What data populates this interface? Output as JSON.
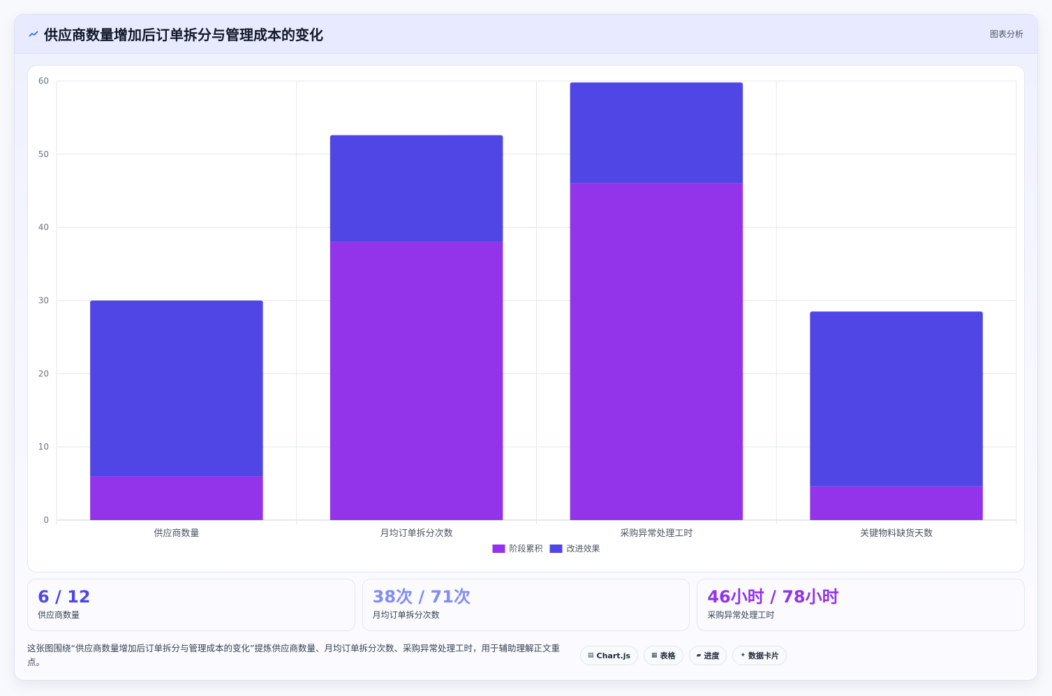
{
  "header": {
    "title": "供应商数量增加后订单拆分与管理成本的变化",
    "tag": "图表分析"
  },
  "chart_data": {
    "type": "bar",
    "stacked": true,
    "categories": [
      "供应商数量",
      "月均订单拆分次数",
      "采购异常处理工时",
      "关键物料缺货天数"
    ],
    "series": [
      {
        "name": "阶段累积",
        "color": "#9333ea",
        "values": [
          6,
          38,
          46,
          4.6
        ]
      },
      {
        "name": "改进效果",
        "color": "#4f46e5",
        "values": [
          24,
          14.6,
          13.8,
          23.9
        ]
      }
    ],
    "ylim": [
      0,
      60
    ],
    "yticks": [
      0,
      10,
      20,
      30,
      40,
      50,
      60
    ],
    "grid": true,
    "legend_position": "bottom"
  },
  "stats": [
    {
      "value": "6 / 12",
      "label": "供应商数量",
      "color": "#4f46e5"
    },
    {
      "value": "38次 / 71次",
      "label": "月均订单拆分次数",
      "color": "#818cf8"
    },
    {
      "value": "46小时 / 78小时",
      "label": "采购异常处理工时",
      "color": "#9333ea"
    }
  ],
  "footer": {
    "text": "这张图围绕“供应商数量增加后订单拆分与管理成本的变化”提炼供应商数量、月均订单拆分次数、采购异常处理工时，用于辅助理解正文重点。",
    "chips": [
      {
        "icon": "▤",
        "label": "Chart.js"
      },
      {
        "icon": "▦",
        "label": "表格"
      },
      {
        "icon": "▰",
        "label": "进度"
      },
      {
        "icon": "✦",
        "label": "数据卡片"
      }
    ]
  }
}
